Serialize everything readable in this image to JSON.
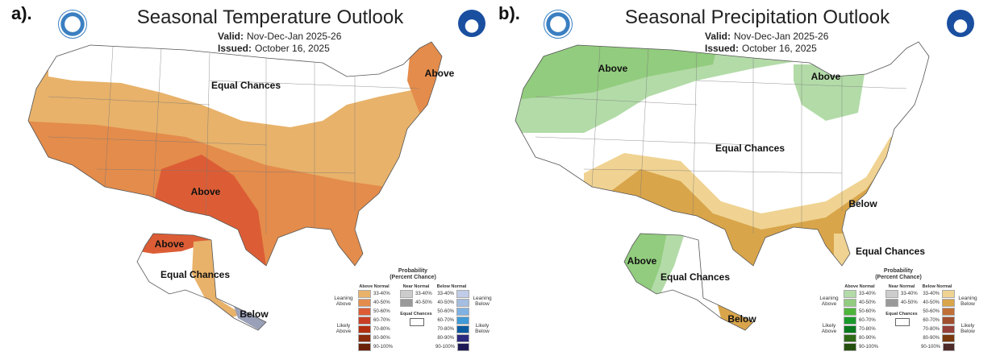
{
  "panels": [
    {
      "label": "a).",
      "title": "Seasonal Temperature Outlook",
      "valid_label": "Valid:",
      "valid": "Nov-Dec-Jan 2025-26",
      "issued_label": "Issued:",
      "issued": "October 16, 2025",
      "map_labels": [
        "Equal Chances",
        "Above",
        "Above",
        "Above",
        "Equal Chances",
        "Below"
      ],
      "legend": {
        "title": "Probability",
        "subtitle": "(Percent Chance)",
        "above_header": "Above Normal",
        "near_header": "Near Normal",
        "below_header": "Below Normal",
        "leaning_above": "Leaning Above",
        "likely_above": "Likely Above",
        "leaning_below": "Leaning Below",
        "likely_below": "Likely Below",
        "equal_chances": "Equal Chances",
        "ranges": [
          "33-40%",
          "40-50%",
          "50-60%",
          "60-70%",
          "70-80%",
          "80-90%",
          "90-100%"
        ],
        "near_ranges": [
          "33-40%",
          "40-50%"
        ],
        "above_colors": [
          "#e8b26a",
          "#e48c4b",
          "#dc5d35",
          "#c93f23",
          "#b2300f",
          "#8c2a0c",
          "#6b2008"
        ],
        "near_colors": [
          "#cccccc",
          "#999999"
        ],
        "below_colors": [
          "#c0cce8",
          "#a4bde0",
          "#7fb2e2",
          "#3f9ad8",
          "#0a5aa0",
          "#2c2a7e",
          "#1e1a55"
        ]
      }
    },
    {
      "label": "b).",
      "title": "Seasonal Precipitation Outlook",
      "valid_label": "Valid:",
      "valid": "Nov-Dec-Jan 2025-26",
      "issued_label": "Issued:",
      "issued": "October 16, 2025",
      "map_labels": [
        "Above",
        "Above",
        "Equal Chances",
        "Below",
        "Equal Chances",
        "Above",
        "Equal Chances",
        "Below"
      ],
      "legend": {
        "title": "Probability",
        "subtitle": "(Percent Chance)",
        "above_header": "Above Normal",
        "near_header": "Near Normal",
        "below_header": "Below Normal",
        "leaning_above": "Leaning Above",
        "likely_above": "Likely Above",
        "leaning_below": "Leaning Below",
        "likely_below": "Likely Below",
        "equal_chances": "Equal Chances",
        "ranges": [
          "33-40%",
          "40-50%",
          "50-60%",
          "60-70%",
          "70-80%",
          "80-90%",
          "90-100%"
        ],
        "near_ranges": [
          "33-40%",
          "40-50%"
        ],
        "above_colors": [
          "#b3dba8",
          "#92cc7e",
          "#4db53a",
          "#1a9a2b",
          "#0a7a1e",
          "#2f6a16",
          "#244f0e"
        ],
        "near_colors": [
          "#cccccc",
          "#999999"
        ],
        "below_colors": [
          "#f0d392",
          "#d9a54a",
          "#c07035",
          "#a0502e",
          "#954038",
          "#7a3a0e",
          "#4e2a28"
        ]
      }
    }
  ]
}
